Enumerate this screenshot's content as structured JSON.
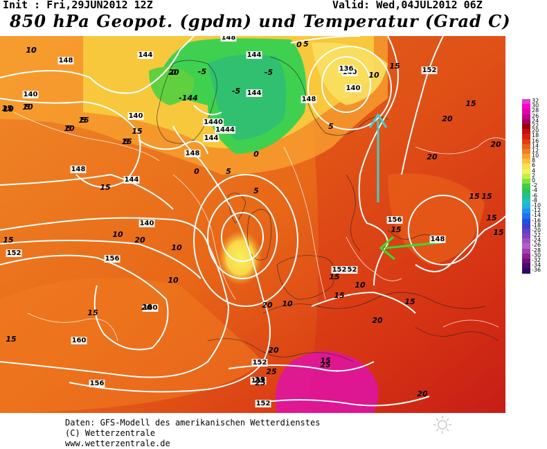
{
  "header": {
    "init": "Init : Fri,29JUN2012 12Z",
    "valid": "Valid: Wed,04JUL2012 06Z",
    "title": "850 hPa Geopot. (gpdm) und Temperatur (Grad C)"
  },
  "map": {
    "contour_labels_geopot": [
      "148",
      "144",
      "144",
      "140",
      "144",
      "140",
      "1440",
      "1444",
      "144",
      "136",
      "140",
      "148",
      "152",
      "148",
      "140",
      "148",
      "144",
      "148",
      "140",
      "152",
      "156",
      "160",
      "152",
      "152",
      "156",
      "160",
      "152",
      "152",
      "156",
      "148",
      "152"
    ],
    "temp_labels": [
      "10",
      "10",
      "10",
      "5",
      "5",
      "5",
      "0",
      "-5",
      "-5",
      "-5",
      "0",
      "0",
      "-144",
      "5",
      "5",
      "0",
      "5",
      "5",
      "10",
      "15",
      "15",
      "15",
      "10",
      "10",
      "15",
      "10",
      "15",
      "15",
      "20",
      "20",
      "20",
      "15",
      "15",
      "15",
      "15",
      "15",
      "15",
      "15",
      "10",
      "20",
      "20",
      "20",
      "25",
      "25",
      "25",
      "20",
      "25",
      "20",
      "20",
      "15",
      "15",
      "10",
      "15",
      "15",
      "10",
      "5",
      "10",
      "10",
      "15",
      "15",
      "20"
    ],
    "arrows": [
      {
        "color": "#40d0d0",
        "direction": "north"
      },
      {
        "color": "#30e030",
        "direction": "west"
      }
    ]
  },
  "legend": {
    "values": [
      "32",
      "30",
      "28",
      "26",
      "24",
      "22",
      "20",
      "18",
      "16",
      "14",
      "12",
      "10",
      "8",
      "6",
      "4",
      "2",
      "0",
      "-2",
      "-4",
      "-6",
      "-8",
      "-10",
      "-12",
      "-14",
      "-16",
      "-18",
      "-20",
      "-22",
      "-24",
      "-26",
      "-28",
      "-30",
      "-32",
      "-34",
      "-36"
    ],
    "colors": [
      "#e040c8",
      "#ff00cc",
      "#e000b0",
      "#c00090",
      "#a00060",
      "#9a0000",
      "#c01010",
      "#d82010",
      "#e04010",
      "#e86018",
      "#f08020",
      "#f8a030",
      "#f8c040",
      "#f8e050",
      "#f0f060",
      "#c0f040",
      "#80e040",
      "#40d040",
      "#30c060",
      "#20c090",
      "#20c0c0",
      "#20b0e0",
      "#2090f0",
      "#2070f0",
      "#2050e0",
      "#4040d0",
      "#6040c8",
      "#8040c0",
      "#a050c0",
      "#b060c8",
      "#a040b0",
      "#902090",
      "#701080",
      "#500870",
      "#300860"
    ]
  },
  "footer": {
    "line1": "Daten: GFS-Modell des amerikanischen Wetterdienstes",
    "line2": "(C) Wetterzentrale",
    "line3": "www.wetterzentrale.de"
  }
}
